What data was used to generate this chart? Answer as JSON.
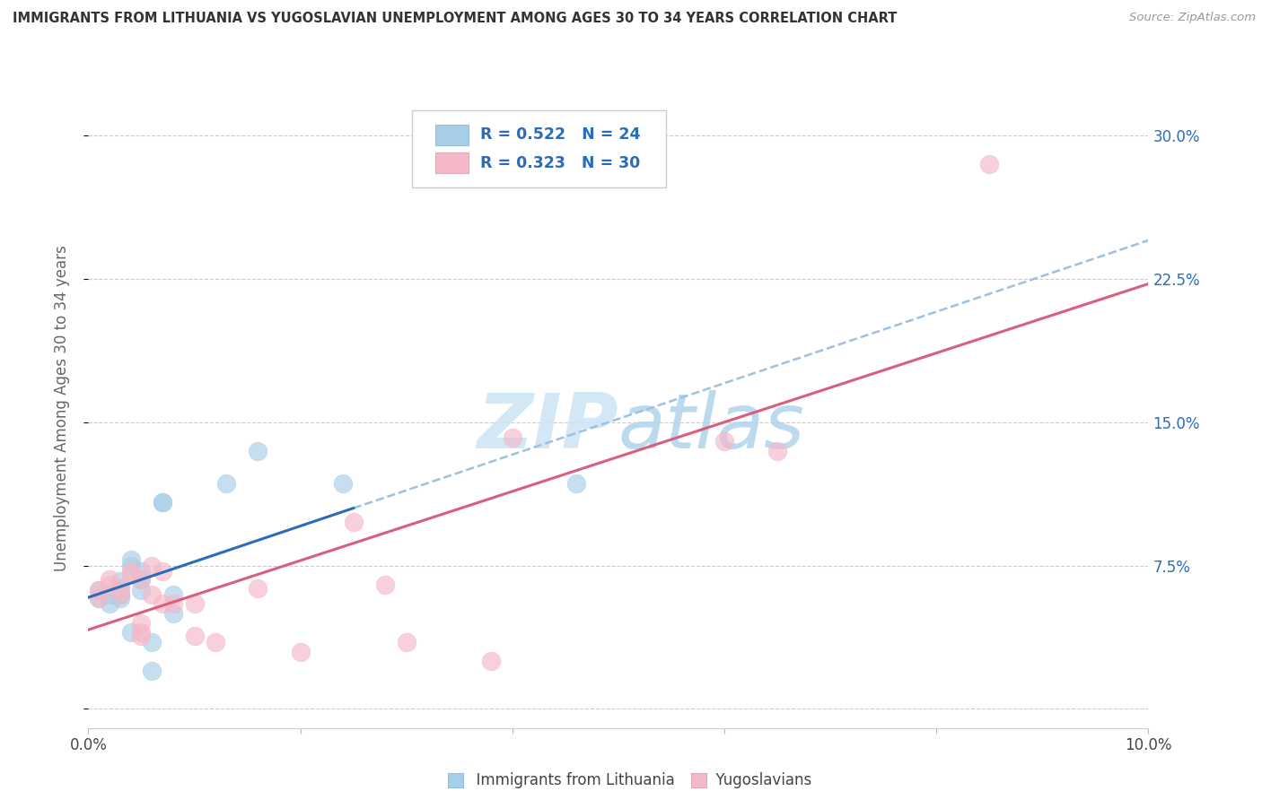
{
  "title": "IMMIGRANTS FROM LITHUANIA VS YUGOSLAVIAN UNEMPLOYMENT AMONG AGES 30 TO 34 YEARS CORRELATION CHART",
  "source": "Source: ZipAtlas.com",
  "ylabel": "Unemployment Among Ages 30 to 34 years",
  "xlim": [
    0.0,
    0.1
  ],
  "ylim": [
    -0.01,
    0.325
  ],
  "xticks": [
    0.0,
    0.02,
    0.04,
    0.06,
    0.08,
    0.1
  ],
  "xticklabels": [
    "0.0%",
    "",
    "",
    "",
    "",
    "10.0%"
  ],
  "yticks": [
    0.0,
    0.075,
    0.15,
    0.225,
    0.3
  ],
  "yticklabels": [
    "",
    "7.5%",
    "15.0%",
    "22.5%",
    "30.0%"
  ],
  "blue_color": "#a8cfe8",
  "pink_color": "#f5b8c8",
  "blue_line_color": "#2b6cb8",
  "pink_line_color": "#d95f7f",
  "blue_dash_color": "#a0c0e0",
  "watermark_color": "#cce4f5",
  "legend_text_color": "#2b6cb8",
  "lit_x": [
    0.001,
    0.001,
    0.002,
    0.002,
    0.003,
    0.003,
    0.003,
    0.003,
    0.004,
    0.004,
    0.004,
    0.005,
    0.005,
    0.005,
    0.006,
    0.006,
    0.007,
    0.007,
    0.008,
    0.008,
    0.013,
    0.016,
    0.024,
    0.046
  ],
  "lit_y": [
    0.058,
    0.062,
    0.06,
    0.055,
    0.063,
    0.067,
    0.06,
    0.058,
    0.075,
    0.078,
    0.04,
    0.062,
    0.072,
    0.068,
    0.035,
    0.02,
    0.108,
    0.108,
    0.06,
    0.05,
    0.118,
    0.135,
    0.118,
    0.118
  ],
  "yug_x": [
    0.001,
    0.001,
    0.002,
    0.002,
    0.003,
    0.003,
    0.004,
    0.004,
    0.005,
    0.005,
    0.005,
    0.005,
    0.006,
    0.006,
    0.007,
    0.007,
    0.008,
    0.01,
    0.01,
    0.012,
    0.016,
    0.02,
    0.025,
    0.028,
    0.03,
    0.038,
    0.04,
    0.06,
    0.065,
    0.085
  ],
  "yug_y": [
    0.062,
    0.058,
    0.065,
    0.068,
    0.063,
    0.06,
    0.072,
    0.07,
    0.068,
    0.045,
    0.038,
    0.04,
    0.075,
    0.06,
    0.072,
    0.055,
    0.055,
    0.055,
    0.038,
    0.035,
    0.063,
    0.03,
    0.098,
    0.065,
    0.035,
    0.025,
    0.142,
    0.14,
    0.135,
    0.285
  ]
}
